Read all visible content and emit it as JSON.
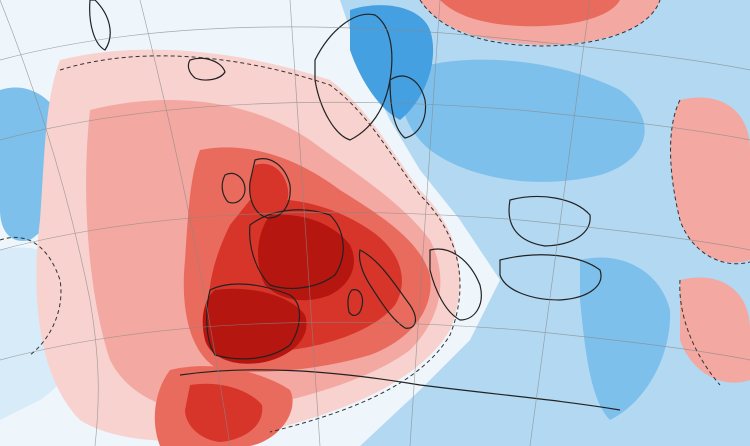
{
  "map": {
    "type": "temperature-anomaly",
    "region": "Europe",
    "labels": [],
    "colors": {
      "warm_1": "#f7d2cf",
      "warm_2": "#f3a8a2",
      "warm_3": "#e96b5d",
      "warm_4": "#d7352a",
      "warm_5": "#b5160f",
      "neutral": "#ffffff",
      "cool_1": "#d8ebf8",
      "cool_2": "#b3d8f2",
      "cool_3": "#7ec0ec",
      "cool_4": "#45a0e2",
      "cool_5": "#2b84d3",
      "coast": "#222222",
      "grid": "#888888",
      "contour": "#333333"
    }
  }
}
